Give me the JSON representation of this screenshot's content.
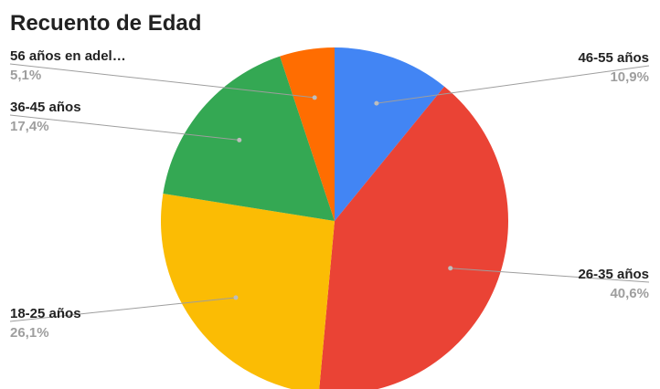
{
  "chart_data": {
    "type": "pie",
    "title": "Recuento de Edad",
    "slices": [
      {
        "label": "46-55 años",
        "percent_label": "10,9%",
        "value": 10.9,
        "color": "#4285f4"
      },
      {
        "label": "26-35 años",
        "percent_label": "40,6%",
        "value": 40.6,
        "color": "#ea4335"
      },
      {
        "label": "18-25 años",
        "percent_label": "26,1%",
        "value": 26.1,
        "color": "#fbbc04"
      },
      {
        "label": "36-45 años",
        "percent_label": "17,4%",
        "value": 17.4,
        "color": "#34a853"
      },
      {
        "label": "56 años en adel…",
        "percent_label": "5,1%",
        "value": 5.1,
        "color": "#ff6d01"
      }
    ],
    "start_angle": "12 o'clock",
    "direction": "clockwise",
    "legend": "none"
  }
}
